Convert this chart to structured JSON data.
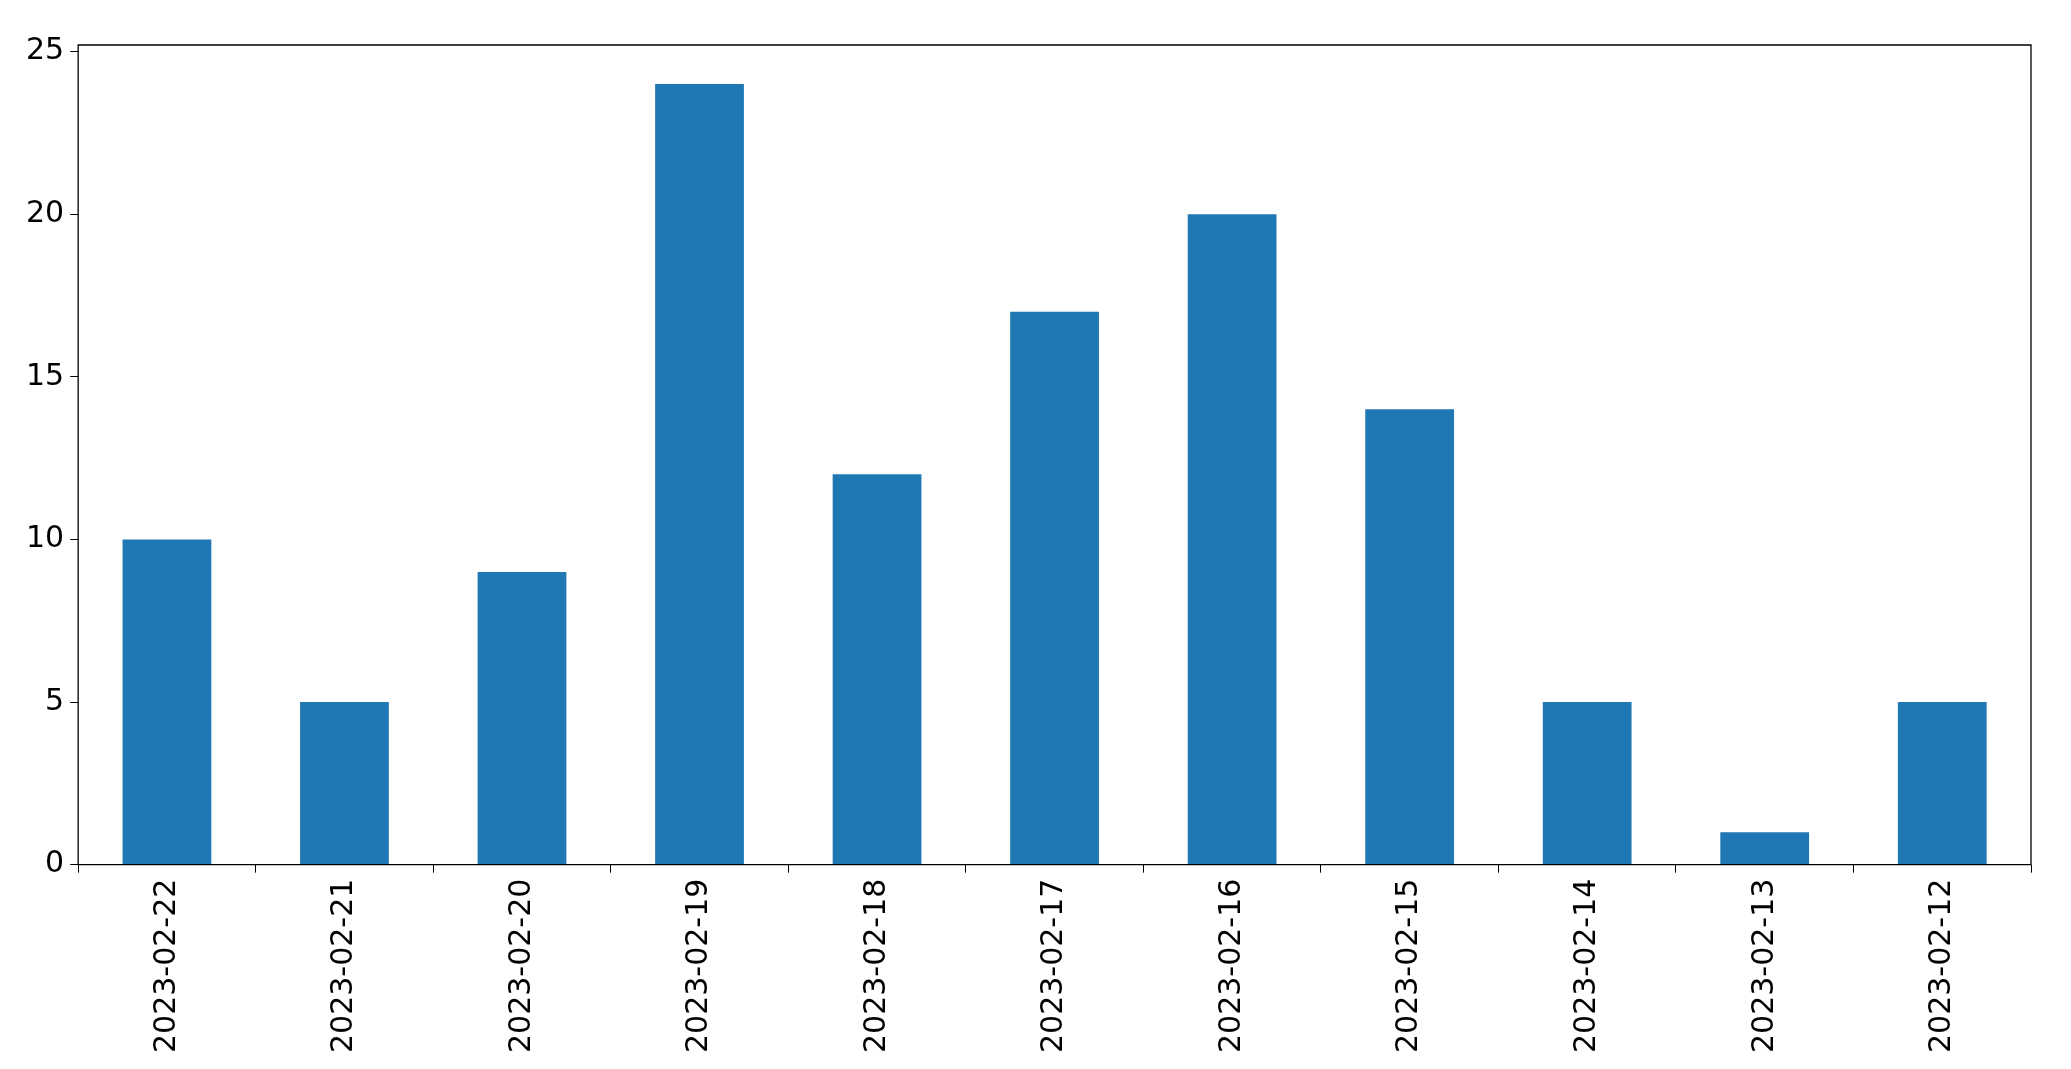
{
  "chart_data": {
    "type": "bar",
    "categories": [
      "2023-02-22",
      "2023-02-21",
      "2023-02-20",
      "2023-02-19",
      "2023-02-18",
      "2023-02-17",
      "2023-02-16",
      "2023-02-15",
      "2023-02-14",
      "2023-02-13",
      "2023-02-12"
    ],
    "values": [
      10,
      5,
      9,
      24,
      12,
      17,
      20,
      14,
      5,
      1,
      5
    ],
    "color": "#1f77b4",
    "ylim": [
      0,
      25.2
    ],
    "yticks": [
      0,
      5,
      10,
      15,
      20,
      25
    ],
    "grid": false,
    "legend": false
  }
}
